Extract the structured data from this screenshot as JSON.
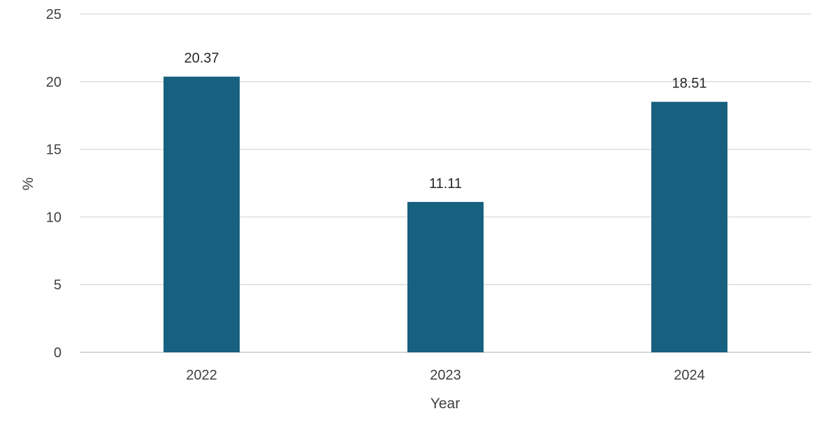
{
  "chart_data": {
    "type": "bar",
    "categories": [
      "2022",
      "2023",
      "2024"
    ],
    "values": [
      20.37,
      11.11,
      18.51
    ],
    "data_labels": [
      "20.37",
      "11.11",
      "18.51"
    ],
    "xlabel": "Year",
    "ylabel": "%",
    "ylim": [
      0,
      25
    ],
    "yticks": [
      0,
      5,
      10,
      15,
      20,
      25
    ],
    "grid": true,
    "legend": "none",
    "bar_color": "#17607f"
  }
}
